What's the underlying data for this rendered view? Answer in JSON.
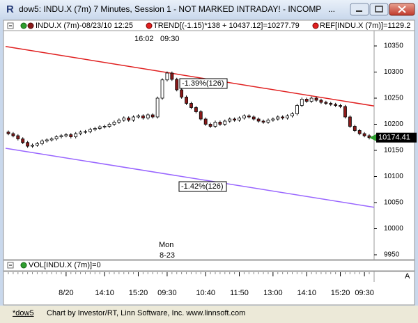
{
  "window": {
    "title": "dow5: INDU.X (7m) 7 Minutes, Session 1 - NOT MARKED INTRADAY! - INCOMP"
  },
  "legend": {
    "symbol": "INDU.X (7m)-08/23/10 12:25",
    "trend": "TREND[(-1.15)*138 + 10437.12]=10277.79",
    "ref": "REF[INDU.X (7m)]=1129.2"
  },
  "chart_data": {
    "type": "candlestick",
    "categories": [
      null,
      null,
      null,
      null,
      null,
      null,
      null,
      null,
      null,
      null,
      null,
      null,
      "8/20",
      null,
      null,
      null,
      null,
      null,
      null,
      null,
      "14:10",
      null,
      null,
      null,
      null,
      null,
      null,
      "15:20",
      null,
      null,
      null,
      null,
      null,
      "09:30",
      null,
      null,
      null,
      null,
      null,
      null,
      null,
      "10:40",
      null,
      null,
      null,
      null,
      null,
      null,
      "11:50",
      null,
      null,
      null,
      null,
      null,
      null,
      "13:00",
      null,
      null,
      null,
      null,
      null,
      null,
      "14:10",
      null,
      null,
      null,
      null,
      null,
      null,
      "15:20",
      null,
      null,
      null,
      null,
      "09:30",
      null
    ],
    "open": [
      10185,
      10182,
      10178,
      10172,
      10165,
      10158,
      10160,
      10163,
      10168,
      10170,
      10172,
      10176,
      10178,
      10180,
      10176,
      10182,
      10185,
      10186,
      10190,
      10192,
      10195,
      10196,
      10200,
      10204,
      10208,
      10212,
      10208,
      10214,
      10216,
      10212,
      10218,
      10214,
      10250,
      10285,
      10298,
      10286,
      10266,
      10252,
      10240,
      10232,
      10224,
      10210,
      10200,
      10196,
      10204,
      10200,
      10206,
      10210,
      10208,
      10212,
      10216,
      10214,
      10210,
      10206,
      10204,
      10208,
      10210,
      10214,
      10212,
      10216,
      10220,
      10236,
      10248,
      10244,
      10250,
      10246,
      10242,
      10240,
      10238,
      10236,
      10234,
      10214,
      10196,
      10188,
      10182,
      10178
    ],
    "high": [
      10188,
      10185,
      10181,
      10175,
      10168,
      10163,
      10166,
      10171,
      10173,
      10175,
      10179,
      10181,
      10183,
      10183,
      10185,
      10188,
      10189,
      10193,
      10195,
      10198,
      10199,
      10203,
      10207,
      10211,
      10215,
      10215,
      10217,
      10219,
      10219,
      10221,
      10221,
      10253,
      10288,
      10301,
      10301,
      10289,
      10269,
      10255,
      10243,
      10235,
      10227,
      10213,
      10203,
      10207,
      10207,
      10209,
      10213,
      10213,
      10215,
      10219,
      10219,
      10217,
      10213,
      10209,
      10211,
      10213,
      10217,
      10217,
      10219,
      10223,
      10239,
      10251,
      10251,
      10253,
      10253,
      10249,
      10245,
      10243,
      10241,
      10239,
      10237,
      10217,
      10199,
      10191,
      10185,
      10181
    ],
    "low": [
      10179,
      10175,
      10169,
      10162,
      10155,
      10155,
      10157,
      10160,
      10165,
      10167,
      10169,
      10173,
      10175,
      10173,
      10173,
      10179,
      10182,
      10183,
      10187,
      10189,
      10192,
      10193,
      10197,
      10201,
      10205,
      10205,
      10205,
      10211,
      10209,
      10209,
      10211,
      10211,
      10247,
      10282,
      10283,
      10263,
      10249,
      10237,
      10229,
      10221,
      10207,
      10197,
      10193,
      10193,
      10197,
      10197,
      10203,
      10205,
      10205,
      10209,
      10211,
      10207,
      10203,
      10201,
      10201,
      10205,
      10207,
      10209,
      10209,
      10213,
      10217,
      10233,
      10241,
      10241,
      10243,
      10239,
      10237,
      10235,
      10233,
      10231,
      10211,
      10193,
      10185,
      10179,
      10175,
      10171
    ],
    "close": [
      10182,
      10178,
      10172,
      10165,
      10158,
      10160,
      10163,
      10168,
      10170,
      10172,
      10176,
      10178,
      10180,
      10176,
      10182,
      10185,
      10186,
      10190,
      10192,
      10195,
      10196,
      10200,
      10204,
      10208,
      10212,
      10208,
      10214,
      10216,
      10212,
      10218,
      10214,
      10250,
      10285,
      10298,
      10286,
      10266,
      10252,
      10240,
      10232,
      10224,
      10210,
      10200,
      10196,
      10204,
      10200,
      10206,
      10210,
      10208,
      10212,
      10216,
      10214,
      10210,
      10206,
      10204,
      10208,
      10210,
      10214,
      10212,
      10216,
      10220,
      10236,
      10248,
      10244,
      10250,
      10246,
      10242,
      10240,
      10238,
      10236,
      10234,
      10214,
      10196,
      10188,
      10182,
      10178,
      10174.41
    ],
    "up_color": "#ffffff",
    "down_color": "#8b1a1a",
    "last_color": "#2e9e2e",
    "ylim": [
      9942,
      10378
    ],
    "yticks": [
      9950,
      10000,
      10050,
      10100,
      10150,
      10200,
      10250,
      10300,
      10350
    ],
    "trend_lines": [
      {
        "color": "#e02020",
        "values": [
          10349,
          10235
        ]
      },
      {
        "color": "#9966ff",
        "values": [
          10154,
          10041
        ]
      }
    ],
    "annotations": {
      "session_time": "16:02",
      "session_open": "09:30",
      "day": "Mon",
      "date": "8-23",
      "upper_channel": "-1.39%(126)",
      "lower_channel": "-1.42%(126)"
    }
  },
  "volume": {
    "label": "VOL[INDU.X (7m)]=0"
  },
  "status": {
    "tab": "*dow5",
    "credit": "Chart by Investor/RT, Linn Software, Inc. www.linnsoft.com"
  }
}
